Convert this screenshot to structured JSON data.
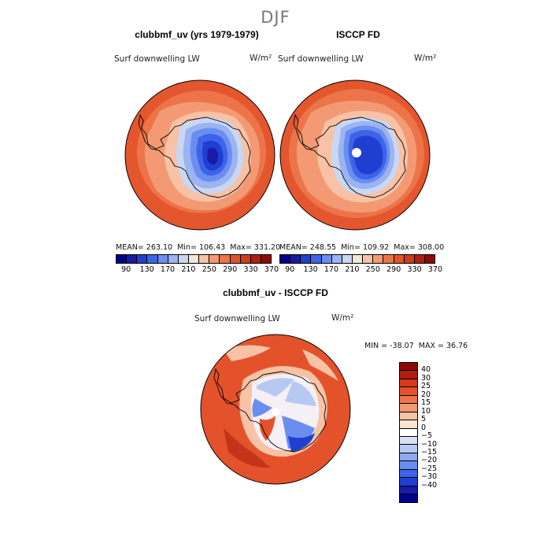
{
  "figure_title": "DJF",
  "left_panel": {
    "title": "clubbmf_uv (yrs 1979-1979)",
    "variable": "Surf downwelling LW",
    "units": "W/m²",
    "stats": {
      "mean_label": "MEAN=",
      "mean": "263.10",
      "min_label": "Min=",
      "min": "106.43",
      "max_label": "Max=",
      "max": "331.20"
    }
  },
  "right_panel": {
    "title": "ISCCP FD",
    "variable": "Surf downwelling LW",
    "units": "W/m²",
    "stats": {
      "mean_label": "MEAN=",
      "mean": "248.55",
      "min_label": "Min=",
      "min": "109.92",
      "max_label": "Max=",
      "max": "308.00"
    }
  },
  "field_colorbar": {
    "colors": [
      "#00008b",
      "#1a1aa8",
      "#1f3fd0",
      "#3d63e8",
      "#6a8ef0",
      "#9bb4f2",
      "#c9d7f3",
      "#f6e5d8",
      "#f7c2a5",
      "#f39a74",
      "#ed7449",
      "#e4522b",
      "#d43a1c",
      "#b01e10",
      "#8b0a05"
    ],
    "tick_labels": [
      "90",
      "130",
      "170",
      "210",
      "250",
      "290",
      "330",
      "370"
    ]
  },
  "diff_panel": {
    "title": "clubbmf_uv - ISCCP FD",
    "variable": "Surf downwelling LW",
    "units": "W/m²",
    "min_label": "MIN =",
    "min": "-38.07",
    "max_label": "MAX =",
    "max": "36.76"
  },
  "diff_colorbar": {
    "colors": [
      "#8b0a05",
      "#b01e10",
      "#d43a1c",
      "#e4522b",
      "#ed7449",
      "#f39a74",
      "#f7c2a5",
      "#fbe3d3",
      "#ffffff",
      "#d8e2f6",
      "#b7c9f3",
      "#8fa9ef",
      "#6a8ef0",
      "#3d63e8",
      "#1f3fd0",
      "#1a1aa8",
      "#00008b"
    ],
    "tick_labels": [
      "40",
      "30",
      "25",
      "20",
      "15",
      "10",
      "5",
      "0",
      "-5",
      "-10",
      "-15",
      "-20",
      "-25",
      "-30",
      "-40"
    ]
  },
  "map_colors": {
    "ocean_far": "#e4562e",
    "ocean_mid": "#ed7449",
    "ocean_near": "#f39a74",
    "coast": "#f7c2a5",
    "ice_edge": "#c9d7f3",
    "ice_1": "#9bb4f2",
    "ice_2": "#6a8ef0",
    "ice_3": "#3d63e8",
    "ice_4": "#1f3fd0",
    "ice_core": "#1a1aa8",
    "diff_ocean": "#e4522b",
    "diff_ocean_dark": "#c43418",
    "diff_light": "#f7c2a5",
    "diff_white": "#f4f0f6",
    "diff_blue_1": "#b7c9f3",
    "diff_blue_2": "#6a8ef0",
    "diff_blue_3": "#1f3fd0",
    "pole_hole": "#ffffff"
  }
}
